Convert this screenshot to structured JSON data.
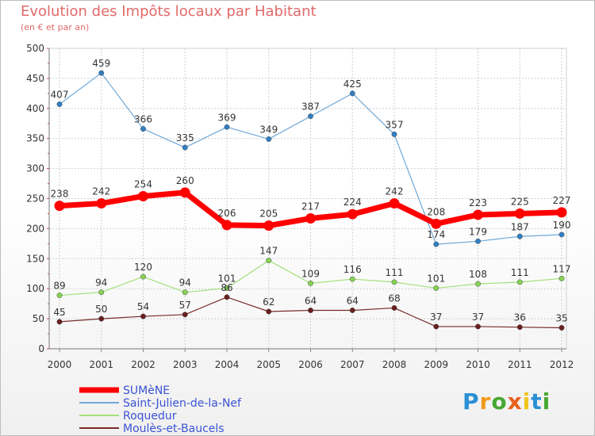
{
  "title": "Evolution des Impôts locaux par Habitant",
  "subtitle": "(en € et par an)",
  "brand": {
    "text": "Proxiti",
    "letters": [
      "P",
      "r",
      "o",
      "x",
      "i",
      "t",
      "i"
    ],
    "colors": [
      "#2a8fd4",
      "#f29a1a",
      "#46a832",
      "#e8601c",
      "#f0c419",
      "#2a8fd4",
      "#46a832"
    ]
  },
  "chart_data": {
    "type": "line",
    "x": [
      "2000",
      "2001",
      "2002",
      "2003",
      "2004",
      "2005",
      "2006",
      "2007",
      "2008",
      "2009",
      "2010",
      "2011",
      "2012"
    ],
    "ylim": [
      0,
      500
    ],
    "yticks": [
      0,
      50,
      100,
      150,
      200,
      250,
      300,
      350,
      400,
      450,
      500
    ],
    "grid": true,
    "legend_position": "bottom-left",
    "series": [
      {
        "name": "SUMèNE",
        "color": "#ff0000",
        "marker": "#ff0000",
        "width": 7,
        "values": [
          238,
          242,
          254,
          260,
          206,
          205,
          217,
          224,
          242,
          208,
          223,
          225,
          227
        ],
        "labels": [
          "238",
          "242",
          "254",
          "260",
          "206",
          "205",
          "217",
          "224",
          "242",
          "208",
          "223",
          "225",
          "227"
        ]
      },
      {
        "name": "Saint-Julien-de-la-Nef",
        "color": "#6fa8d8",
        "marker": "#2f7fc4",
        "width": 1.2,
        "values": [
          407,
          459,
          366,
          335,
          369,
          349,
          387,
          425,
          357,
          174,
          179,
          187,
          190
        ],
        "labels": [
          "407",
          "459",
          "366",
          "335",
          "369",
          "349",
          "387",
          "425",
          "357",
          "174",
          "179",
          "187",
          "190"
        ]
      },
      {
        "name": "Roquedur",
        "color": "#a4e07a",
        "marker": "#86d353",
        "width": 1.2,
        "values": [
          89,
          94,
          120,
          94,
          101,
          147,
          109,
          116,
          111,
          101,
          108,
          111,
          117
        ],
        "labels": [
          "89",
          "94",
          "120",
          "94",
          "101",
          "147",
          "109",
          "116",
          "111",
          "101",
          "108",
          "111",
          "117"
        ]
      },
      {
        "name": "Moulès-et-Baucels",
        "color": "#7a2a2a",
        "marker": "#6a1e1e",
        "width": 1.2,
        "values": [
          45,
          50,
          54,
          57,
          86,
          62,
          64,
          64,
          68,
          37,
          37,
          36,
          35
        ],
        "labels": [
          "45",
          "50",
          "54",
          "57",
          "86",
          "62",
          "64",
          "64",
          "68",
          "37",
          "37",
          "36",
          "35"
        ]
      }
    ]
  }
}
